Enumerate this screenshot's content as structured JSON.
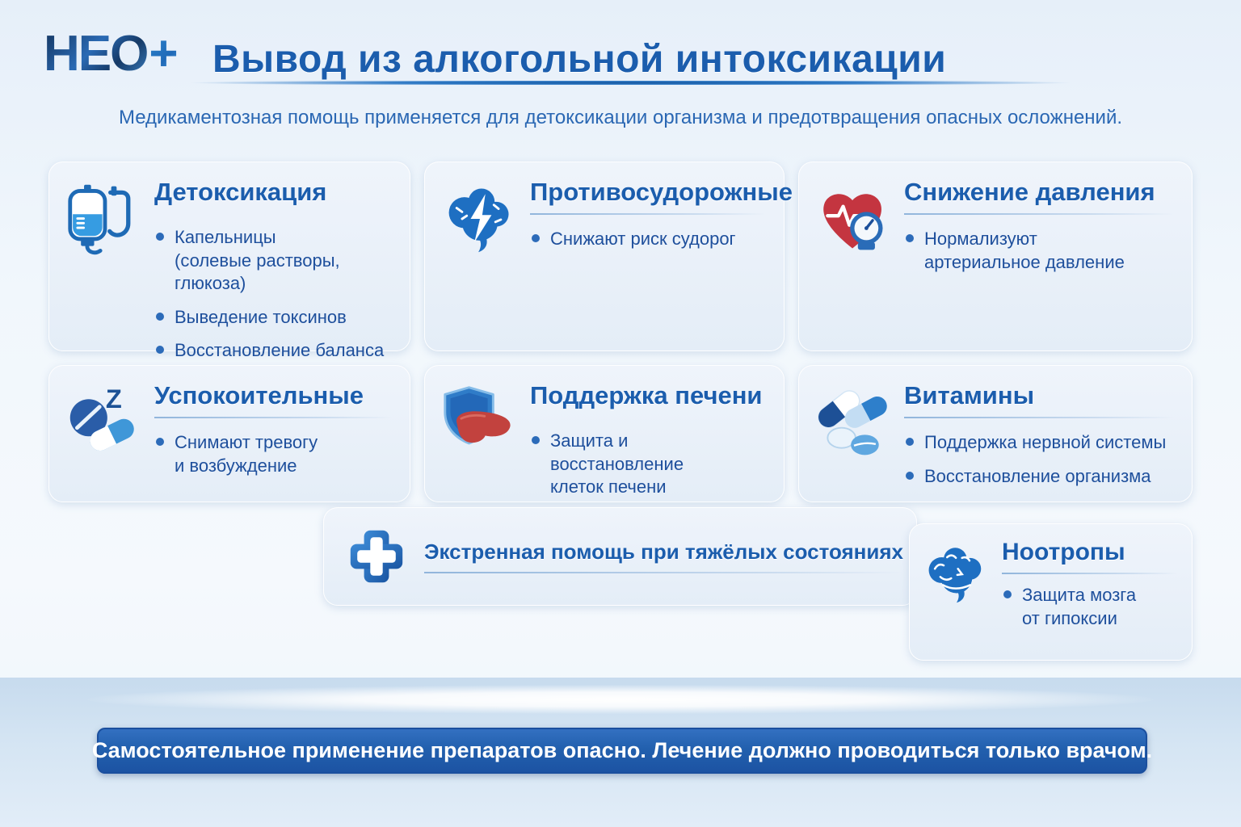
{
  "logo": {
    "text": "НЕО",
    "plus": "+"
  },
  "header": {
    "title": "Вывод из алкогольной интоксикации"
  },
  "subtitle": "Медикаментозная помощь применяется для детоксикации организма и предотвращения опасных осложнений.",
  "cards": [
    {
      "id": "detox",
      "icon": "iv-drip-icon",
      "title": "Детоксикация",
      "bullets": [
        "Капельницы\n(солевые растворы, глюкоза)",
        "Выведение токсинов",
        "Восстановление баланса жидкости"
      ]
    },
    {
      "id": "anticonvulsants",
      "icon": "brain-lightning-icon",
      "title": "Противосудорожные",
      "bullets": [
        "Снижают риск судорог"
      ]
    },
    {
      "id": "pressure-reduction",
      "icon": "heart-gauge-icon",
      "title": "Снижение давления",
      "bullets": [
        "Нормализуют\nартериальное давление"
      ]
    },
    {
      "id": "sedatives",
      "icon": "sedative-pills-icon",
      "title": "Успокоительные",
      "bullets": [
        "Снимают тревогу\nи возбуждение"
      ]
    },
    {
      "id": "liver-support",
      "icon": "liver-shield-icon",
      "title": "Поддержка печени",
      "bullets": [
        "Защита и восстановление\nклеток печени"
      ]
    },
    {
      "id": "vitamins",
      "icon": "vitamin-pills-icon",
      "title": "Витамины",
      "bullets": [
        "Поддержка нервной системы",
        "Восстановление организма"
      ]
    },
    {
      "id": "nootropics",
      "icon": "brain-icon",
      "title": "Ноотропы",
      "bullets": [
        "Защита мозга\nот гипоксии"
      ]
    }
  ],
  "emergency": {
    "icon": "medical-cross-icon",
    "title": "Экстренная помощь при тяжёлых состояниях"
  },
  "footer": {
    "text": "Самостоятельное применение препаратов опасно. Лечение должно проводиться только врачом."
  },
  "colors": {
    "accent_blue": "#1b5dad",
    "bullet_text": "#1e4f9c",
    "bullet_dot": "#2c6bb9",
    "card_bg": "#e9f0f9",
    "footer_bg": "#2260ae",
    "heart_red": "#c43540",
    "liver_red": "#c2423e",
    "band_bg": "#cfe1f1"
  }
}
